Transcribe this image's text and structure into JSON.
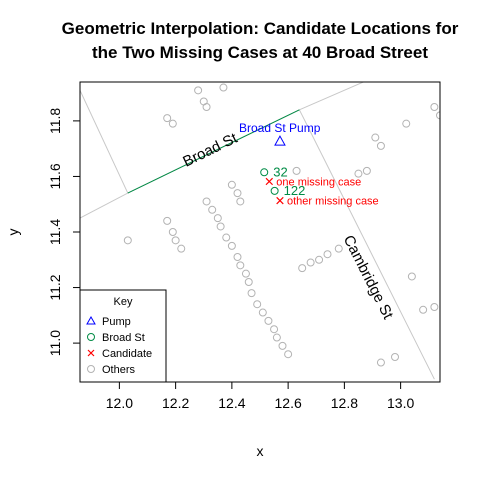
{
  "chart_data": {
    "type": "scatter",
    "title_lines": [
      "Geometric Interpolation: Candidate Locations for",
      "the Two Missing Cases at 40 Broad Street"
    ],
    "xlabel": "x",
    "ylabel": "y",
    "xlim": [
      11.86,
      13.14
    ],
    "ylim": [
      10.86,
      11.94
    ],
    "xticks": [
      12.0,
      12.2,
      12.4,
      12.6,
      12.8,
      13.0
    ],
    "yticks": [
      11.0,
      11.2,
      11.4,
      11.6,
      11.8
    ],
    "xtick_labels": [
      "12.0",
      "12.2",
      "12.4",
      "12.6",
      "12.8",
      "13.0"
    ],
    "ytick_labels": [
      "11.0",
      "11.2",
      "11.4",
      "11.6",
      "11.8"
    ],
    "grid": false,
    "colors": {
      "pump": "#0000ff",
      "broad": "#008b45",
      "candidate": "#ff0000",
      "others": "#b3b3b3",
      "streets": "#c8c8c8"
    },
    "streets": [
      {
        "label": "Broad St",
        "points": [
          [
            11.86,
            11.45
          ],
          [
            12.03,
            11.54
          ],
          [
            12.64,
            11.84
          ],
          [
            13.14,
            12.06
          ]
        ]
      },
      {
        "label": "",
        "points": [
          [
            12.03,
            11.54
          ],
          [
            11.86,
            11.91
          ]
        ]
      },
      {
        "label": "Cambridge St",
        "points": [
          [
            12.64,
            11.84
          ],
          [
            13.12,
            10.87
          ]
        ]
      }
    ],
    "broad_segment": [
      [
        12.03,
        11.54
      ],
      [
        12.64,
        11.84
      ]
    ],
    "street_labels": [
      {
        "text": "Broad St",
        "x": 12.33,
        "y": 11.68,
        "angle": -26
      },
      {
        "text": "Cambridge St",
        "x": 12.87,
        "y": 11.23,
        "angle": 63
      }
    ],
    "pump": {
      "label": "Broad St Pump",
      "x": 12.571,
      "y": 11.727,
      "label_x": 12.57,
      "label_y": 11.775
    },
    "broad_cases": [
      {
        "label": "32",
        "x": 12.515,
        "y": 11.615
      },
      {
        "label": "122",
        "x": 12.552,
        "y": 11.548
      }
    ],
    "candidates": [
      {
        "label": "one missing case",
        "x": 12.533,
        "y": 11.582
      },
      {
        "label": "other missing case",
        "x": 12.571,
        "y": 11.513
      }
    ],
    "others": [
      [
        12.03,
        11.37
      ],
      [
        12.17,
        11.81
      ],
      [
        12.19,
        11.79
      ],
      [
        12.17,
        11.44
      ],
      [
        12.19,
        11.4
      ],
      [
        12.2,
        11.37
      ],
      [
        12.22,
        11.34
      ],
      [
        12.28,
        11.91
      ],
      [
        12.3,
        11.87
      ],
      [
        12.31,
        11.85
      ],
      [
        12.37,
        11.92
      ],
      [
        12.31,
        11.51
      ],
      [
        12.33,
        11.48
      ],
      [
        12.35,
        11.45
      ],
      [
        12.36,
        11.42
      ],
      [
        12.38,
        11.38
      ],
      [
        12.4,
        11.35
      ],
      [
        12.42,
        11.31
      ],
      [
        12.43,
        11.28
      ],
      [
        12.45,
        11.25
      ],
      [
        12.46,
        11.22
      ],
      [
        12.47,
        11.18
      ],
      [
        12.49,
        11.14
      ],
      [
        12.51,
        11.11
      ],
      [
        12.53,
        11.08
      ],
      [
        12.55,
        11.05
      ],
      [
        12.56,
        11.02
      ],
      [
        12.58,
        10.99
      ],
      [
        12.6,
        10.96
      ],
      [
        12.4,
        11.57
      ],
      [
        12.42,
        11.54
      ],
      [
        12.43,
        11.51
      ],
      [
        12.63,
        11.62
      ],
      [
        12.65,
        11.27
      ],
      [
        12.68,
        11.29
      ],
      [
        12.71,
        11.3
      ],
      [
        12.74,
        11.32
      ],
      [
        12.78,
        11.34
      ],
      [
        12.85,
        11.61
      ],
      [
        12.88,
        11.62
      ],
      [
        12.91,
        11.74
      ],
      [
        12.93,
        11.71
      ],
      [
        13.02,
        11.79
      ],
      [
        13.12,
        11.85
      ],
      [
        13.14,
        11.82
      ],
      [
        13.04,
        11.24
      ],
      [
        13.08,
        11.12
      ],
      [
        13.12,
        11.13
      ],
      [
        12.93,
        10.93
      ],
      [
        12.98,
        10.95
      ]
    ],
    "legend": {
      "title": "Key",
      "position": "bottom-left",
      "items": [
        {
          "label": "Pump",
          "marker": "triangle",
          "color": "#0000ff"
        },
        {
          "label": "Broad St",
          "marker": "circle",
          "color": "#008b45"
        },
        {
          "label": "Candidate",
          "marker": "cross",
          "color": "#ff0000"
        },
        {
          "label": "Others",
          "marker": "circle",
          "color": "#b3b3b3"
        }
      ]
    }
  }
}
